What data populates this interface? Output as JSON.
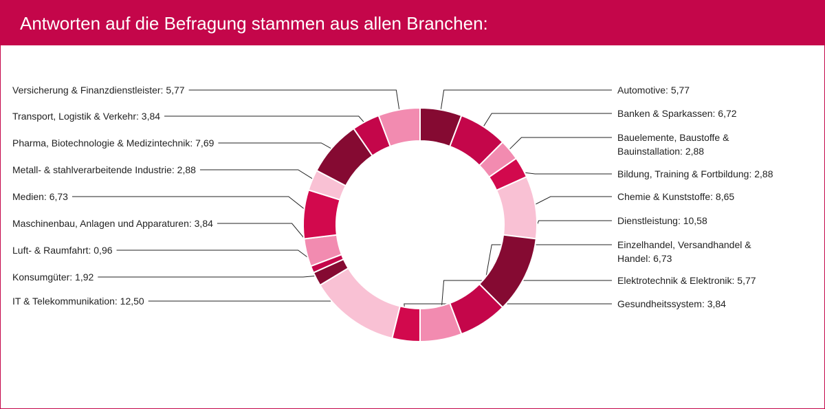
{
  "header": {
    "title": "Antworten auf die Befragung stammen aus allen Branchen:"
  },
  "colors": {
    "header_bg": "#c4064a",
    "leader": "#222222",
    "segment_border": "#ffffff"
  },
  "chart_data": {
    "type": "pie",
    "variant": "donut",
    "title": "",
    "legend": "none",
    "series": [
      {
        "values": [
          5.77,
          6.72,
          2.88,
          2.88,
          8.65,
          10.58,
          6.73,
          5.77,
          3.84,
          12.5,
          1.92,
          0.96,
          3.84,
          6.73,
          2.88,
          7.69,
          3.84,
          5.77
        ]
      }
    ],
    "slices": [
      {
        "label": "Automotive: 5,77",
        "lines": [
          "Automotive: 5,77"
        ],
        "value": 5.77,
        "color": "#850a32",
        "side": "right"
      },
      {
        "label": "Banken & Sparkassen: 6,72",
        "lines": [
          "Banken & Sparkassen: 6,72"
        ],
        "value": 6.72,
        "color": "#c4064a",
        "side": "right"
      },
      {
        "label": "Bauelemente, Baustoffe & Bauinstallation: 2,88",
        "lines": [
          "Bauelemente, Baustoffe &",
          "Bauinstallation: 2,88"
        ],
        "value": 2.88,
        "color": "#f28bb0",
        "side": "right"
      },
      {
        "label": "Bildung, Training & Fortbildung: 2,88",
        "lines": [
          "Bildung, Training & Fortbildung: 2,88"
        ],
        "value": 2.88,
        "color": "#d2094d",
        "side": "right"
      },
      {
        "label": "Chemie & Kunststoffe: 8,65",
        "lines": [
          "Chemie & Kunststoffe: 8,65"
        ],
        "value": 8.65,
        "color": "#f9c1d4",
        "side": "right"
      },
      {
        "label": "Dienstleistung: 10,58",
        "lines": [
          "Dienstleistung: 10,58"
        ],
        "value": 10.58,
        "color": "#850a32",
        "side": "right"
      },
      {
        "label": "Einzelhandel, Versandhandel & Handel: 6,73",
        "lines": [
          "Einzelhandel, Versandhandel &",
          "Handel: 6,73"
        ],
        "value": 6.73,
        "color": "#c4064a",
        "side": "right"
      },
      {
        "label": "Elektrotechnik & Elektronik: 5,77",
        "lines": [
          "Elektrotechnik & Elektronik: 5,77"
        ],
        "value": 5.77,
        "color": "#f28bb0",
        "side": "right"
      },
      {
        "label": "Gesundheitssystem: 3,84",
        "lines": [
          "Gesundheitssystem: 3,84"
        ],
        "value": 3.84,
        "color": "#d2094d",
        "side": "right"
      },
      {
        "label": "IT & Telekommunikation: 12,50",
        "lines": [
          "IT & Telekommunikation: 12,50"
        ],
        "value": 12.5,
        "color": "#f9c1d4",
        "side": "left"
      },
      {
        "label": "Konsumgüter: 1,92",
        "lines": [
          "Konsumgüter: 1,92"
        ],
        "value": 1.92,
        "color": "#850a32",
        "side": "left"
      },
      {
        "label": "Luft- & Raumfahrt: 0,96",
        "lines": [
          "Luft- & Raumfahrt: 0,96"
        ],
        "value": 0.96,
        "color": "#c4064a",
        "side": "left"
      },
      {
        "label": "Maschinenbau, Anlagen und Apparaturen: 3,84",
        "lines": [
          "Maschinenbau, Anlagen und Apparaturen: 3,84"
        ],
        "value": 3.84,
        "color": "#f28bb0",
        "side": "left"
      },
      {
        "label": "Medien: 6,73",
        "lines": [
          "Medien: 6,73"
        ],
        "value": 6.73,
        "color": "#d2094d",
        "side": "left"
      },
      {
        "label": "Metall- & stahlverarbeitende Industrie: 2,88",
        "lines": [
          "Metall- & stahlverarbeitende Industrie: 2,88"
        ],
        "value": 2.88,
        "color": "#f9c1d4",
        "side": "left"
      },
      {
        "label": "Pharma, Biotechnologie & Medizintechnik: 7,69",
        "lines": [
          "Pharma, Biotechnologie & Medizintechnik: 7,69"
        ],
        "value": 7.69,
        "color": "#850a32",
        "side": "left"
      },
      {
        "label": "Transport, Logistik & Verkehr: 3,84",
        "lines": [
          "Transport, Logistik & Verkehr: 3,84"
        ],
        "value": 3.84,
        "color": "#c4064a",
        "side": "left"
      },
      {
        "label": "Versicherung & Finanzdienstleister: 5,77",
        "lines": [
          "Versicherung & Finanzdienstleister: 5,77"
        ],
        "value": 5.77,
        "color": "#f28bb0",
        "side": "left"
      }
    ]
  }
}
